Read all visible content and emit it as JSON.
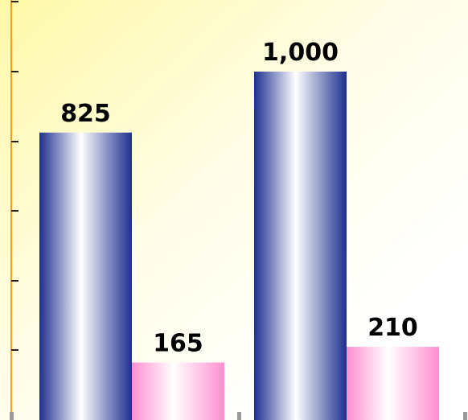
{
  "chart_data": {
    "type": "bar",
    "title": "",
    "xlabel": "",
    "ylabel": "",
    "groups": 2,
    "series": [
      {
        "values": [
          825,
          1000
        ],
        "labels": [
          "825",
          "1,000"
        ],
        "color": "#1e2f8f"
      },
      {
        "values": [
          165,
          210
        ],
        "labels": [
          "165",
          "210"
        ],
        "color": "#ff8fd0"
      }
    ],
    "ylim": [
      0,
      1200
    ],
    "grid": false,
    "legend": "none"
  },
  "colors": {
    "background_top_left": "#fff9a8",
    "background_bottom_right": "#ffffff",
    "axis": "#f0a020"
  }
}
